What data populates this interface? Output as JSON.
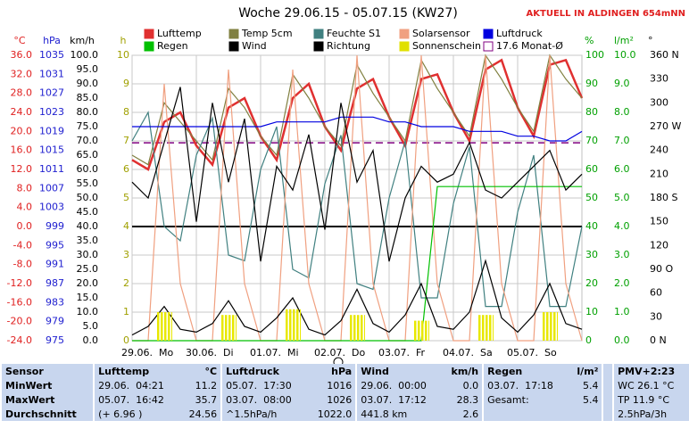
{
  "chart_data": {
    "type": "line",
    "title": "Woche 29.06.15 - 05.07.15 (KW27)",
    "subtitle": "AKTUELL IN ALDINGEN 654mNN",
    "xlim": [
      0,
      168
    ],
    "xticks": [
      {
        "value": 0,
        "label": "29.06.  Mo"
      },
      {
        "value": 24,
        "label": "30.06.  Di"
      },
      {
        "value": 48,
        "label": "01.07.  Mi"
      },
      {
        "value": 72,
        "label": "02.07.  Do"
      },
      {
        "value": 96,
        "label": "03.07.  Fr"
      },
      {
        "value": 120,
        "label": "04.07.  Sa"
      },
      {
        "value": 144,
        "label": "05.07.  So"
      }
    ],
    "x": [
      0,
      6,
      12,
      18,
      24,
      30,
      36,
      42,
      48,
      54,
      60,
      66,
      72,
      78,
      84,
      90,
      96,
      102,
      108,
      114,
      120,
      126,
      132,
      138,
      144,
      150,
      156,
      162,
      168
    ],
    "axes": [
      {
        "unit": "°C",
        "color": "#e02020",
        "ylim": [
          -24,
          36
        ],
        "yticks": [
          {
            "value": 36,
            "label": "36.0"
          },
          {
            "value": 32,
            "label": "32.0"
          },
          {
            "value": 28,
            "label": "28.0"
          },
          {
            "value": 24,
            "label": "24.0"
          },
          {
            "value": 20,
            "label": "20.0"
          },
          {
            "value": 16,
            "label": "16.0"
          },
          {
            "value": 12,
            "label": "12.0"
          },
          {
            "value": 8,
            "label": "8.0"
          },
          {
            "value": 4,
            "label": "4.0"
          },
          {
            "value": 0,
            "label": "0.0"
          },
          {
            "value": -4,
            "label": "-4.0"
          },
          {
            "value": -8,
            "label": "-8.0"
          },
          {
            "value": -12,
            "label": "-12.0"
          },
          {
            "value": -16,
            "label": "-16.0"
          },
          {
            "value": -20,
            "label": "-20.0"
          },
          {
            "value": -24,
            "label": "-24.0"
          }
        ]
      },
      {
        "unit": "hPa",
        "color": "#2020d0",
        "ylim": [
          975,
          1035
        ],
        "yticks": [
          1035,
          1031,
          1027,
          1023,
          1019,
          1015,
          1011,
          1007,
          1003,
          999,
          995,
          991,
          987,
          983,
          979,
          975
        ]
      },
      {
        "unit": "km/h",
        "color": "#000000",
        "ylim": [
          0,
          100
        ],
        "yticks": [
          {
            "value": 100,
            "label": "100.0"
          },
          {
            "value": 95,
            "label": "95.0"
          },
          {
            "value": 90,
            "label": "90.0"
          },
          {
            "value": 85,
            "label": "85.0"
          },
          {
            "value": 80,
            "label": "80.0"
          },
          {
            "value": 75,
            "label": "75.0"
          },
          {
            "value": 70,
            "label": "70.0"
          },
          {
            "value": 65,
            "label": "65.0"
          },
          {
            "value": 60,
            "label": "60.0"
          },
          {
            "value": 55,
            "label": "55.0"
          },
          {
            "value": 50,
            "label": "50.0"
          },
          {
            "value": 45,
            "label": "45.0"
          },
          {
            "value": 40,
            "label": "40.0"
          },
          {
            "value": 35,
            "label": "35.0"
          },
          {
            "value": 30,
            "label": "30.0"
          },
          {
            "value": 25,
            "label": "25.0"
          },
          {
            "value": 20,
            "label": "20.0"
          },
          {
            "value": 15,
            "label": "15.0"
          },
          {
            "value": 10,
            "label": "10.0"
          },
          {
            "value": 5,
            "label": "5.0"
          },
          {
            "value": 0,
            "label": "0.0"
          }
        ]
      },
      {
        "unit": "h",
        "color": "#a0a000",
        "ylim": [
          0,
          10
        ],
        "yticks": [
          10,
          9,
          8,
          7,
          6,
          5,
          4,
          3,
          2,
          1,
          0
        ],
        "grid": true
      },
      {
        "unit": "%",
        "color": "#00a000",
        "ylim": [
          0,
          100
        ],
        "yticks": [
          100,
          90,
          80,
          70,
          60,
          50,
          40,
          30,
          20,
          10,
          0
        ]
      },
      {
        "unit": "l/m²",
        "color": "#00a000",
        "ylim": [
          0,
          10
        ],
        "yticks": [
          {
            "value": 10,
            "label": "10.0"
          },
          {
            "value": 9,
            "label": "9.0"
          },
          {
            "value": 8,
            "label": "8.0"
          },
          {
            "value": 7,
            "label": "7.0"
          },
          {
            "value": 6,
            "label": "6.0"
          },
          {
            "value": 5,
            "label": "5.0"
          },
          {
            "value": 4,
            "label": "4.0"
          },
          {
            "value": 3,
            "label": "3.0"
          },
          {
            "value": 2,
            "label": "2.0"
          },
          {
            "value": 1,
            "label": "1.0"
          },
          {
            "value": 0,
            "label": "0.0"
          }
        ]
      },
      {
        "unit": "°",
        "color": "#000000",
        "ylim": [
          0,
          360
        ],
        "yticks": [
          {
            "value": 360,
            "label": "360 N"
          },
          330,
          300,
          {
            "value": 270,
            "label": "270 W"
          },
          240,
          210,
          {
            "value": 180,
            "label": "180 S"
          },
          150,
          120,
          {
            "value": 90,
            "label": "90 O"
          },
          60,
          30,
          {
            "value": 0,
            "label": "0 N"
          }
        ]
      }
    ],
    "series": [
      {
        "name": "Lufttemp",
        "color": "#e03030",
        "axis": 0,
        "width": 2.5,
        "values": [
          14,
          12,
          22,
          24,
          17,
          13,
          25,
          27,
          19,
          14,
          27,
          30,
          21,
          16,
          29,
          31,
          23,
          17,
          31,
          32,
          24,
          18,
          33,
          35,
          25,
          19,
          34,
          35,
          27
        ]
      },
      {
        "name": "Temp 5cm",
        "color": "#808040",
        "axis": 0,
        "values": [
          15,
          13,
          26,
          22,
          18,
          14,
          29,
          25,
          19,
          15,
          32,
          27,
          21,
          17,
          34,
          28,
          23,
          18,
          35,
          29,
          24,
          19,
          36,
          31,
          25,
          20,
          36,
          31,
          27
        ]
      },
      {
        "name": "Feuchte S1",
        "color": "#408080",
        "axis": 4,
        "values": [
          70,
          80,
          40,
          35,
          65,
          78,
          30,
          28,
          60,
          75,
          25,
          22,
          55,
          72,
          20,
          18,
          50,
          70,
          15,
          15,
          48,
          68,
          12,
          12,
          45,
          65,
          12,
          12,
          40
        ]
      },
      {
        "name": "Solarsensor",
        "color": "#f0a080",
        "axis": 4,
        "values": [
          0,
          0,
          90,
          20,
          0,
          0,
          95,
          20,
          0,
          0,
          95,
          20,
          0,
          0,
          100,
          20,
          0,
          0,
          100,
          20,
          0,
          0,
          100,
          20,
          0,
          0,
          100,
          20,
          0
        ]
      },
      {
        "name": "Luftdruck",
        "color": "#0000e0",
        "axis": 1,
        "values": [
          1020,
          1020,
          1020,
          1020,
          1020,
          1020,
          1020,
          1020,
          1020,
          1021,
          1021,
          1021,
          1021,
          1022,
          1022,
          1022,
          1021,
          1021,
          1020,
          1020,
          1020,
          1019,
          1019,
          1019,
          1018,
          1018,
          1017,
          1017,
          1019
        ]
      },
      {
        "name": "Regen",
        "color": "#00c000",
        "axis": 5,
        "values": [
          0,
          0,
          0,
          0,
          0,
          0,
          0,
          0,
          0,
          0,
          0,
          0,
          0,
          0,
          0,
          0,
          0,
          0,
          0,
          5.4,
          5.4,
          5.4,
          5.4,
          5.4,
          5.4,
          5.4,
          5.4,
          5.4,
          5.4
        ]
      },
      {
        "name": "Wind",
        "color": "#000000",
        "axis": 2,
        "values": [
          2,
          5,
          12,
          4,
          3,
          6,
          14,
          5,
          3,
          8,
          15,
          4,
          2,
          7,
          18,
          6,
          3,
          9,
          20,
          5,
          4,
          10,
          28,
          8,
          3,
          9,
          20,
          6,
          4
        ]
      },
      {
        "name": "Richtung",
        "color": "#000000",
        "axis": 6,
        "values": [
          200,
          180,
          250,
          320,
          150,
          300,
          200,
          280,
          100,
          220,
          190,
          260,
          140,
          300,
          200,
          240,
          100,
          180,
          220,
          200,
          210,
          250,
          190,
          180,
          200,
          220,
          240,
          190,
          210
        ]
      },
      {
        "name": "Sonnenschein",
        "color": "#e0e000",
        "axis": 3,
        "kind": "bar",
        "values": [
          0,
          0,
          1.0,
          0,
          0,
          0,
          0.9,
          0,
          0,
          0,
          1.1,
          0,
          0,
          0,
          0.9,
          0,
          0,
          0,
          0.7,
          0,
          0,
          0,
          0.9,
          0,
          0,
          0,
          1.0,
          0,
          0
        ]
      }
    ],
    "monthly_avg": {
      "name": "17.6 Monat-Ø",
      "color": "#800080",
      "axis": 0,
      "value": 17.6
    },
    "table": {
      "header": [
        "Sensor",
        "Lufttemp",
        "°C",
        "Luftdruck",
        "hPa",
        "Wind",
        "km/h",
        "Regen",
        "l/m²",
        "PMV+2:23"
      ],
      "rows": [
        [
          "MinWert",
          "29.06.  04:21",
          "11.2",
          "05.07.  17:30",
          "1016",
          "29.06.  00:00",
          "0.0",
          "03.07.  17:18",
          "5.4",
          "WC 26.1 °C"
        ],
        [
          "MaxWert",
          "05.07.  16:42",
          "35.7",
          "03.07.  08:00",
          "1026",
          "03.07.  17:12",
          "28.3",
          "Gesamt:",
          "5.4",
          "TP 11.9 °C"
        ],
        [
          "Durchschnitt",
          "(+ 6.96 )",
          "24.56",
          "^1.5hPa/h",
          "1022.0",
          "441.8 km",
          "2.6",
          null,
          null,
          "2.5hPa/3h"
        ]
      ]
    }
  }
}
